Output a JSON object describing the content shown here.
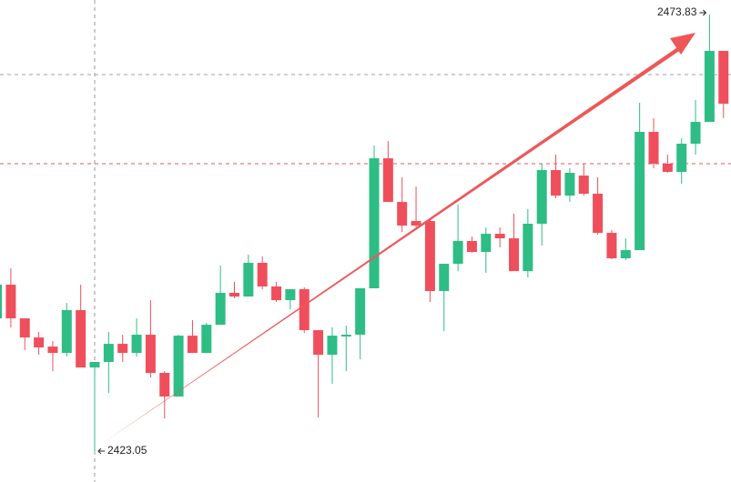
{
  "chart_data": {
    "type": "candlestick",
    "up_color": "#2ebd85",
    "down_color": "#ef4f5c",
    "ylim": [
      2419.46,
      2475.52
    ],
    "levels": [
      {
        "value": 2466.85,
        "color": "#a0a0a0"
      },
      {
        "value": 2456.48,
        "color": "#e05a5a"
      }
    ],
    "open": [
      2438.49,
      2442.41,
      2438.49,
      2436.27,
      2435.21,
      2434.47,
      2439.45,
      2432.78,
      2433.42,
      2435.53,
      2434.47,
      2436.59,
      2432.15,
      2429.4,
      2436.48,
      2434.47,
      2437.75,
      2441.46,
      2441.03,
      2444.95,
      2442.2,
      2440.61,
      2441.88,
      2437.12,
      2434.26,
      2436.38,
      2436.59,
      2441.99,
      2457.11,
      2452.03,
      2449.81,
      2449.81,
      2441.67,
      2444.84,
      2447.49,
      2446.22,
      2448.33,
      2447.8,
      2443.99,
      2449.5,
      2455.74,
      2452.77,
      2455.1,
      2452.99,
      2448.44,
      2445.48,
      2446.43,
      2460.18,
      2456.48,
      2455.53,
      2458.81,
      2461.34,
      2469.6
    ],
    "high": [
      2442.41,
      2444.31,
      2438.49,
      2436.91,
      2435.85,
      2440.29,
      2442.41,
      2433.42,
      2436.91,
      2436.59,
      2438.49,
      2440.61,
      2432.36,
      2436.59,
      2438.28,
      2437.96,
      2444.63,
      2442.73,
      2445.9,
      2445.69,
      2442.73,
      2441.88,
      2442.09,
      2437.12,
      2437.44,
      2437.65,
      2441.99,
      2458.59,
      2459.12,
      2454.89,
      2453.83,
      2450.13,
      2444.84,
      2451.72,
      2448.01,
      2449.07,
      2449.07,
      2450.66,
      2451.19,
      2456.48,
      2457.54,
      2455.95,
      2456.48,
      2454.89,
      2448.76,
      2447.8,
      2463.57,
      2461.77,
      2457.54,
      2459.44,
      2463.88,
      2473.83,
      2469.6
    ],
    "low": [
      2438.49,
      2437.44,
      2434.79,
      2434.26,
      2432.36,
      2434.05,
      2432.78,
      2423.05,
      2429.82,
      2433.42,
      2434.05,
      2431.62,
      2426.86,
      2429.4,
      2434.47,
      2434.47,
      2437.75,
      2440.82,
      2441.03,
      2441.88,
      2440.4,
      2439.55,
      2436.8,
      2426.96,
      2430.88,
      2432.36,
      2433.73,
      2441.99,
      2452.03,
      2448.54,
      2449.07,
      2440.4,
      2437.01,
      2443.99,
      2446.11,
      2443.78,
      2446.75,
      2443.99,
      2443.25,
      2446.96,
      2452.46,
      2452.03,
      2452.77,
      2448.23,
      2445.37,
      2445.26,
      2446.43,
      2455.95,
      2455.42,
      2454.15,
      2457.54,
      2461.34,
      2461.77
    ],
    "close": [
      2442.41,
      2438.49,
      2436.27,
      2435.11,
      2434.47,
      2439.45,
      2432.78,
      2433.42,
      2435.53,
      2434.47,
      2436.59,
      2432.15,
      2429.4,
      2436.48,
      2434.47,
      2437.75,
      2441.46,
      2441.03,
      2444.95,
      2442.2,
      2440.61,
      2441.88,
      2437.12,
      2434.26,
      2436.48,
      2436.59,
      2441.99,
      2457.11,
      2452.03,
      2449.28,
      2449.28,
      2441.67,
      2444.84,
      2447.49,
      2446.22,
      2448.33,
      2447.8,
      2443.99,
      2449.5,
      2455.74,
      2452.77,
      2455.42,
      2452.99,
      2448.44,
      2445.48,
      2446.43,
      2460.18,
      2456.48,
      2455.53,
      2458.81,
      2461.34,
      2469.6,
      2463.46
    ]
  }
}
